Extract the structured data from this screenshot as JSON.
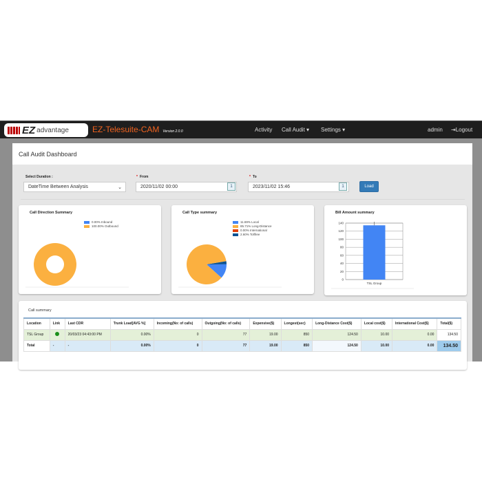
{
  "nav": {
    "logo_text": "EZ advantage",
    "app_title": "EZ-Telesuite-CAM",
    "version": "Version 2.0.0",
    "links": [
      "Activity",
      "Call Audit",
      "Settings"
    ],
    "user": "admin",
    "logout": "Logout"
  },
  "page": {
    "title": "Call Audit Dashboard"
  },
  "filters": {
    "duration_label": "Select Duration :",
    "duration_value": "DateTime Between Analysis",
    "from_label": "From",
    "from_value": "2020/11/02 00:00",
    "to_label": "To",
    "to_value": "2023/11/02 15:46",
    "load": "Load"
  },
  "chart_data": [
    {
      "type": "pie",
      "title": "Call Direction Summary",
      "donut": true,
      "series": [
        {
          "name": "0.00% Inbound",
          "value": 0,
          "color": "#4285f4"
        },
        {
          "name": "100.00% Outbound",
          "value": 100,
          "color": "#fbb040"
        }
      ]
    },
    {
      "type": "pie",
      "title": "Call Type summary",
      "series": [
        {
          "name": "11.69% Local",
          "value": 11.69,
          "color": "#4285f4"
        },
        {
          "name": "85.71% Long-Distance",
          "value": 85.71,
          "color": "#fbb040"
        },
        {
          "name": "0.00% International",
          "value": 0,
          "color": "#e0400a"
        },
        {
          "name": "2.60% Tollfree",
          "value": 2.6,
          "color": "#0b5394"
        }
      ]
    },
    {
      "type": "bar",
      "title": "Bill Amount summary",
      "categories": [
        "TSL Group"
      ],
      "values": [
        134.5
      ],
      "ylim": [
        0,
        140
      ],
      "yticks": [
        "0",
        "20",
        "40",
        "60",
        "80",
        "100",
        "120",
        "140"
      ],
      "color": "#4285f4",
      "grid": true
    }
  ],
  "table": {
    "title": "Call summary",
    "headers": [
      "Location",
      "Link",
      "Last CDR",
      "Trunk Load[AVG %]",
      "Incoming(No: of calls)",
      "Outgoing(No: of calls)",
      "Expensive($)",
      "Longest(sec)",
      "Long-Distance Cost($)",
      "Local cost($)",
      "International Cost($)",
      "Total($)"
    ],
    "rows": [
      [
        "TSL Group",
        "",
        "20/03/23 04:43:00 PM",
        "0.00%",
        "0",
        "77",
        "19.00",
        "850",
        "124.50",
        "10.00",
        "0.00",
        "134.50"
      ]
    ],
    "total": [
      "Total",
      "-",
      "-",
      "0.00%",
      "0",
      "77",
      "19.00",
      "850",
      "124.50",
      "10.00",
      "0.00",
      "134.50"
    ],
    "link_status_color": "#1a8f1a"
  }
}
